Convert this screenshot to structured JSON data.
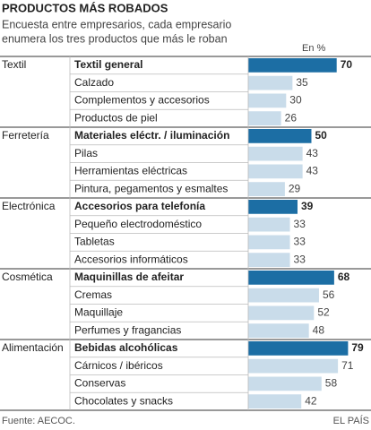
{
  "chart_data": {
    "type": "bar",
    "title": "PRODUCTOS MÁS ROBADOS",
    "subtitle": [
      "Encuesta entre empresarios, cada empresario",
      "enumera los tres productos que más le roban"
    ],
    "unit_label": "En %",
    "xlim": [
      0,
      100
    ],
    "highlight_color": "#1c6ea4",
    "color": "#c9dcea",
    "groups": [
      {
        "name": "Textil",
        "categories": [
          "Textil general",
          "Calzado",
          "Complementos y accesorios",
          "Productos de piel"
        ],
        "values": [
          70,
          35,
          30,
          26
        ]
      },
      {
        "name": "Ferretería",
        "categories": [
          "Materiales eléctr. / iluminación",
          "Pilas",
          "Herramientas eléctricas",
          "Pintura, pegamentos y esmaltes"
        ],
        "values": [
          50,
          43,
          43,
          29
        ]
      },
      {
        "name": "Electrónica",
        "categories": [
          "Accesorios para telefonía",
          "Pequeño electrodoméstico",
          "Tabletas",
          "Accesorios informáticos"
        ],
        "values": [
          39,
          33,
          33,
          33
        ]
      },
      {
        "name": "Cosmética",
        "categories": [
          "Maquinillas de afeitar",
          "Cremas",
          "Maquillaje",
          "Perfumes y fragancias"
        ],
        "values": [
          68,
          56,
          52,
          48
        ]
      },
      {
        "name": "Alimentación",
        "categories": [
          "Bebidas alcohólicas",
          "Cárnicos / ibéricos",
          "Conservas",
          "Chocolates y snacks"
        ],
        "values": [
          79,
          71,
          58,
          42
        ]
      }
    ],
    "source": "Fuente: AECOC.",
    "credit": "EL PAÍS"
  }
}
